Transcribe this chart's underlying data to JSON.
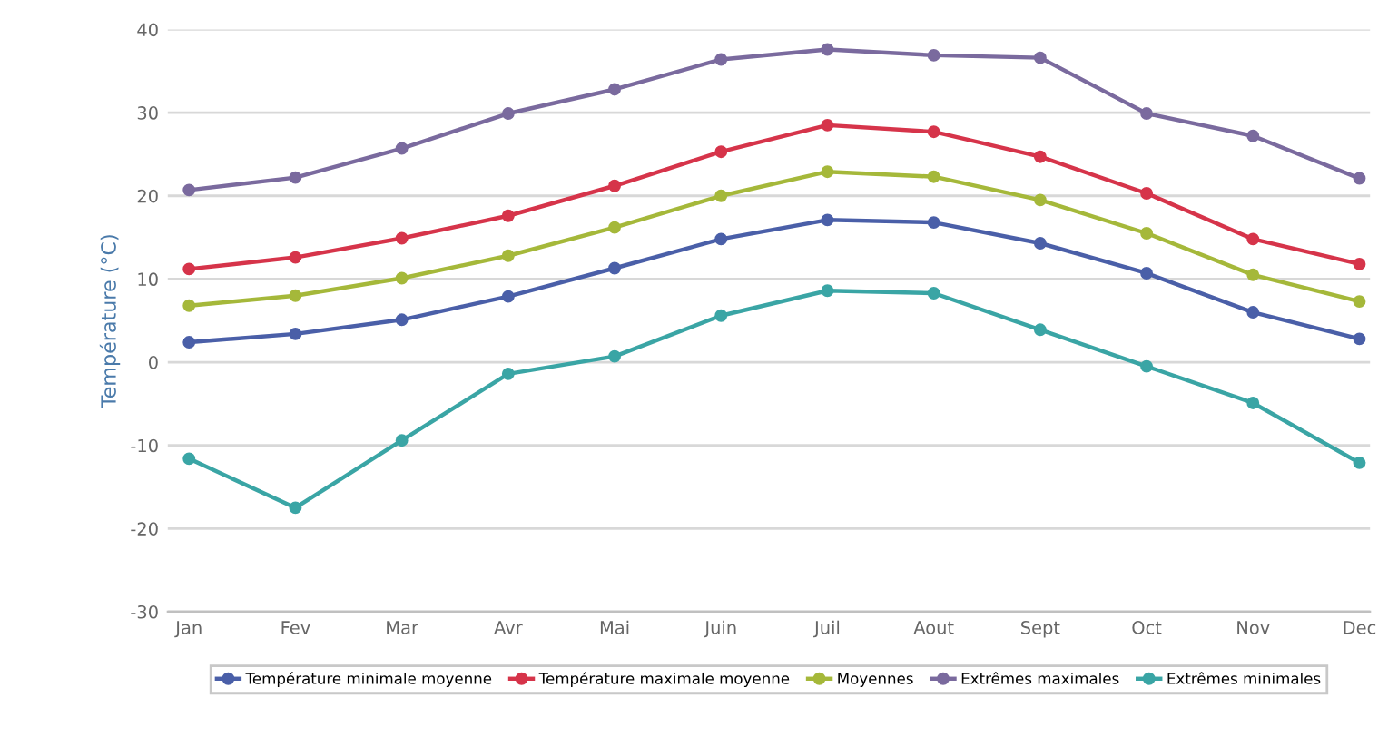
{
  "chart_data": {
    "type": "line",
    "ylabel": "Température (°C)",
    "categories": [
      "Jan",
      "Fev",
      "Mar",
      "Avr",
      "Mai",
      "Juin",
      "Juil",
      "Aout",
      "Sept",
      "Oct",
      "Nov",
      "Dec"
    ],
    "series": [
      {
        "name": "Température minimale moyenne",
        "color": "#4a5fa8",
        "values": [
          2.4,
          3.4,
          5.1,
          7.9,
          11.3,
          14.8,
          17.1,
          16.8,
          14.3,
          10.7,
          6.0,
          2.8
        ]
      },
      {
        "name": "Température maximale moyenne",
        "color": "#d6344a",
        "values": [
          11.2,
          12.6,
          14.9,
          17.6,
          21.2,
          25.3,
          28.5,
          27.7,
          24.7,
          20.3,
          14.8,
          11.8
        ]
      },
      {
        "name": "Moyennes",
        "color": "#a5b83a",
        "values": [
          6.8,
          8.0,
          10.1,
          12.8,
          16.2,
          20.0,
          22.9,
          22.3,
          19.5,
          15.5,
          10.5,
          7.3
        ]
      },
      {
        "name": "Extrêmes maximales",
        "color": "#7a6a9e",
        "values": [
          20.7,
          22.2,
          25.7,
          29.9,
          32.8,
          36.4,
          37.6,
          36.9,
          36.6,
          29.9,
          27.2,
          22.1
        ]
      },
      {
        "name": "Extrêmes minimales",
        "color": "#3aa5a5",
        "values": [
          -11.6,
          -17.5,
          -9.4,
          -1.4,
          0.7,
          5.6,
          8.6,
          8.3,
          3.9,
          -0.5,
          -4.9,
          -12.1
        ]
      }
    ],
    "ylim": [
      -30,
      40
    ],
    "yticks": [
      -30,
      -20,
      -10,
      0,
      10,
      20,
      30,
      40
    ],
    "grid": "y",
    "legend": "bottom",
    "marker": "circle",
    "line_style": "solid"
  }
}
